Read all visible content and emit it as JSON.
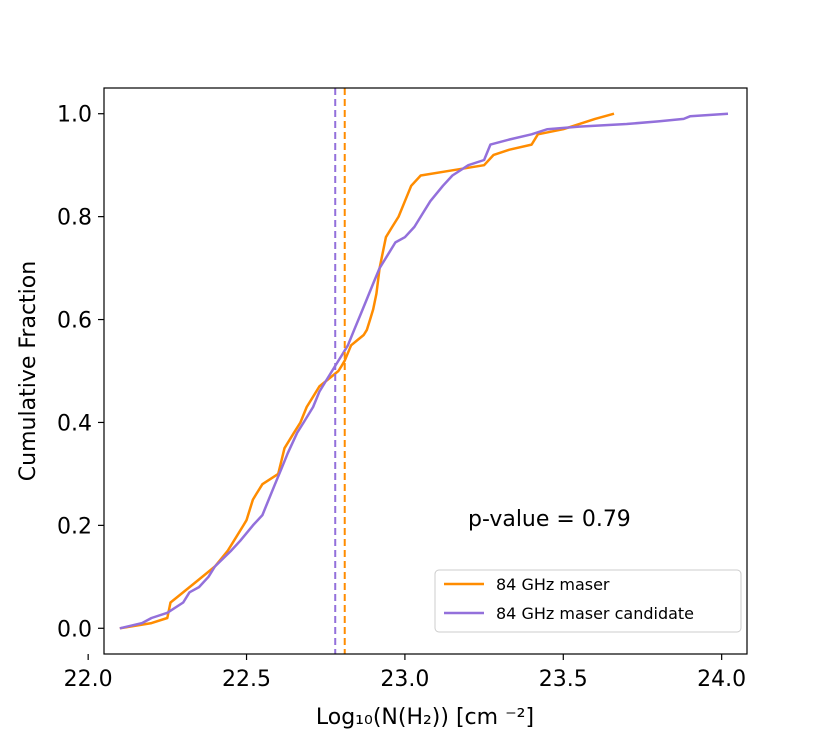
{
  "chart_data": {
    "type": "line",
    "xlabel": "Log₁₀(N(H₂)) [cm ⁻²]",
    "ylabel": "Cumulative Fraction",
    "xlim": [
      22.05,
      24.08
    ],
    "ylim": [
      -0.05,
      1.05
    ],
    "xticks": [
      22.0,
      22.5,
      23.0,
      23.5,
      24.0
    ],
    "yticks": [
      0.0,
      0.2,
      0.4,
      0.6,
      0.8,
      1.0
    ],
    "xtick_labels": [
      "22.0",
      "22.5",
      "23.0",
      "23.5",
      "24.0"
    ],
    "ytick_labels": [
      "0.0",
      "0.2",
      "0.4",
      "0.6",
      "0.8",
      "1.0"
    ],
    "grid": false,
    "legend_position": "lower-right",
    "annotation": "p-value = 0.79",
    "series": [
      {
        "name": "84 GHz maser",
        "color": "#ff8c00",
        "median": 22.81,
        "x": [
          22.1,
          22.2,
          22.25,
          22.26,
          22.28,
          22.34,
          22.4,
          22.44,
          22.46,
          22.49,
          22.5,
          22.52,
          22.53,
          22.55,
          22.6,
          22.62,
          22.65,
          22.67,
          22.69,
          22.71,
          22.73,
          22.75,
          22.77,
          22.79,
          22.8,
          22.81,
          22.83,
          22.85,
          22.87,
          22.88,
          22.89,
          22.9,
          22.91,
          22.92,
          22.94,
          22.96,
          22.98,
          23.0,
          23.02,
          23.05,
          23.15,
          23.25,
          23.28,
          23.33,
          23.4,
          23.42,
          23.5,
          23.6,
          23.66
        ],
        "y": [
          0.0,
          0.01,
          0.02,
          0.05,
          0.06,
          0.09,
          0.12,
          0.15,
          0.17,
          0.2,
          0.21,
          0.25,
          0.26,
          0.28,
          0.3,
          0.35,
          0.38,
          0.4,
          0.43,
          0.45,
          0.47,
          0.48,
          0.49,
          0.5,
          0.51,
          0.52,
          0.55,
          0.56,
          0.57,
          0.58,
          0.6,
          0.62,
          0.65,
          0.7,
          0.76,
          0.78,
          0.8,
          0.83,
          0.86,
          0.88,
          0.89,
          0.9,
          0.92,
          0.93,
          0.94,
          0.96,
          0.97,
          0.99,
          1.0
        ]
      },
      {
        "name": "84 GHz maser candidate",
        "color": "#9370db",
        "median": 22.78,
        "x": [
          22.1,
          22.17,
          22.2,
          22.25,
          22.3,
          22.32,
          22.35,
          22.38,
          22.4,
          22.45,
          22.48,
          22.52,
          22.55,
          22.57,
          22.59,
          22.61,
          22.63,
          22.66,
          22.68,
          22.71,
          22.73,
          22.76,
          22.78,
          22.8,
          22.82,
          22.84,
          22.86,
          22.88,
          22.9,
          22.92,
          22.95,
          22.97,
          23.0,
          23.03,
          23.06,
          23.08,
          23.12,
          23.15,
          23.2,
          23.25,
          23.27,
          23.33,
          23.4,
          23.45,
          23.55,
          23.7,
          23.8,
          23.88,
          23.9,
          24.02
        ],
        "y": [
          0.0,
          0.01,
          0.02,
          0.03,
          0.05,
          0.07,
          0.08,
          0.1,
          0.12,
          0.15,
          0.17,
          0.2,
          0.22,
          0.25,
          0.28,
          0.31,
          0.34,
          0.38,
          0.4,
          0.43,
          0.46,
          0.49,
          0.51,
          0.53,
          0.55,
          0.58,
          0.61,
          0.64,
          0.67,
          0.7,
          0.73,
          0.75,
          0.76,
          0.78,
          0.81,
          0.83,
          0.86,
          0.88,
          0.9,
          0.91,
          0.94,
          0.95,
          0.96,
          0.97,
          0.975,
          0.98,
          0.985,
          0.99,
          0.995,
          1.0
        ]
      }
    ]
  }
}
